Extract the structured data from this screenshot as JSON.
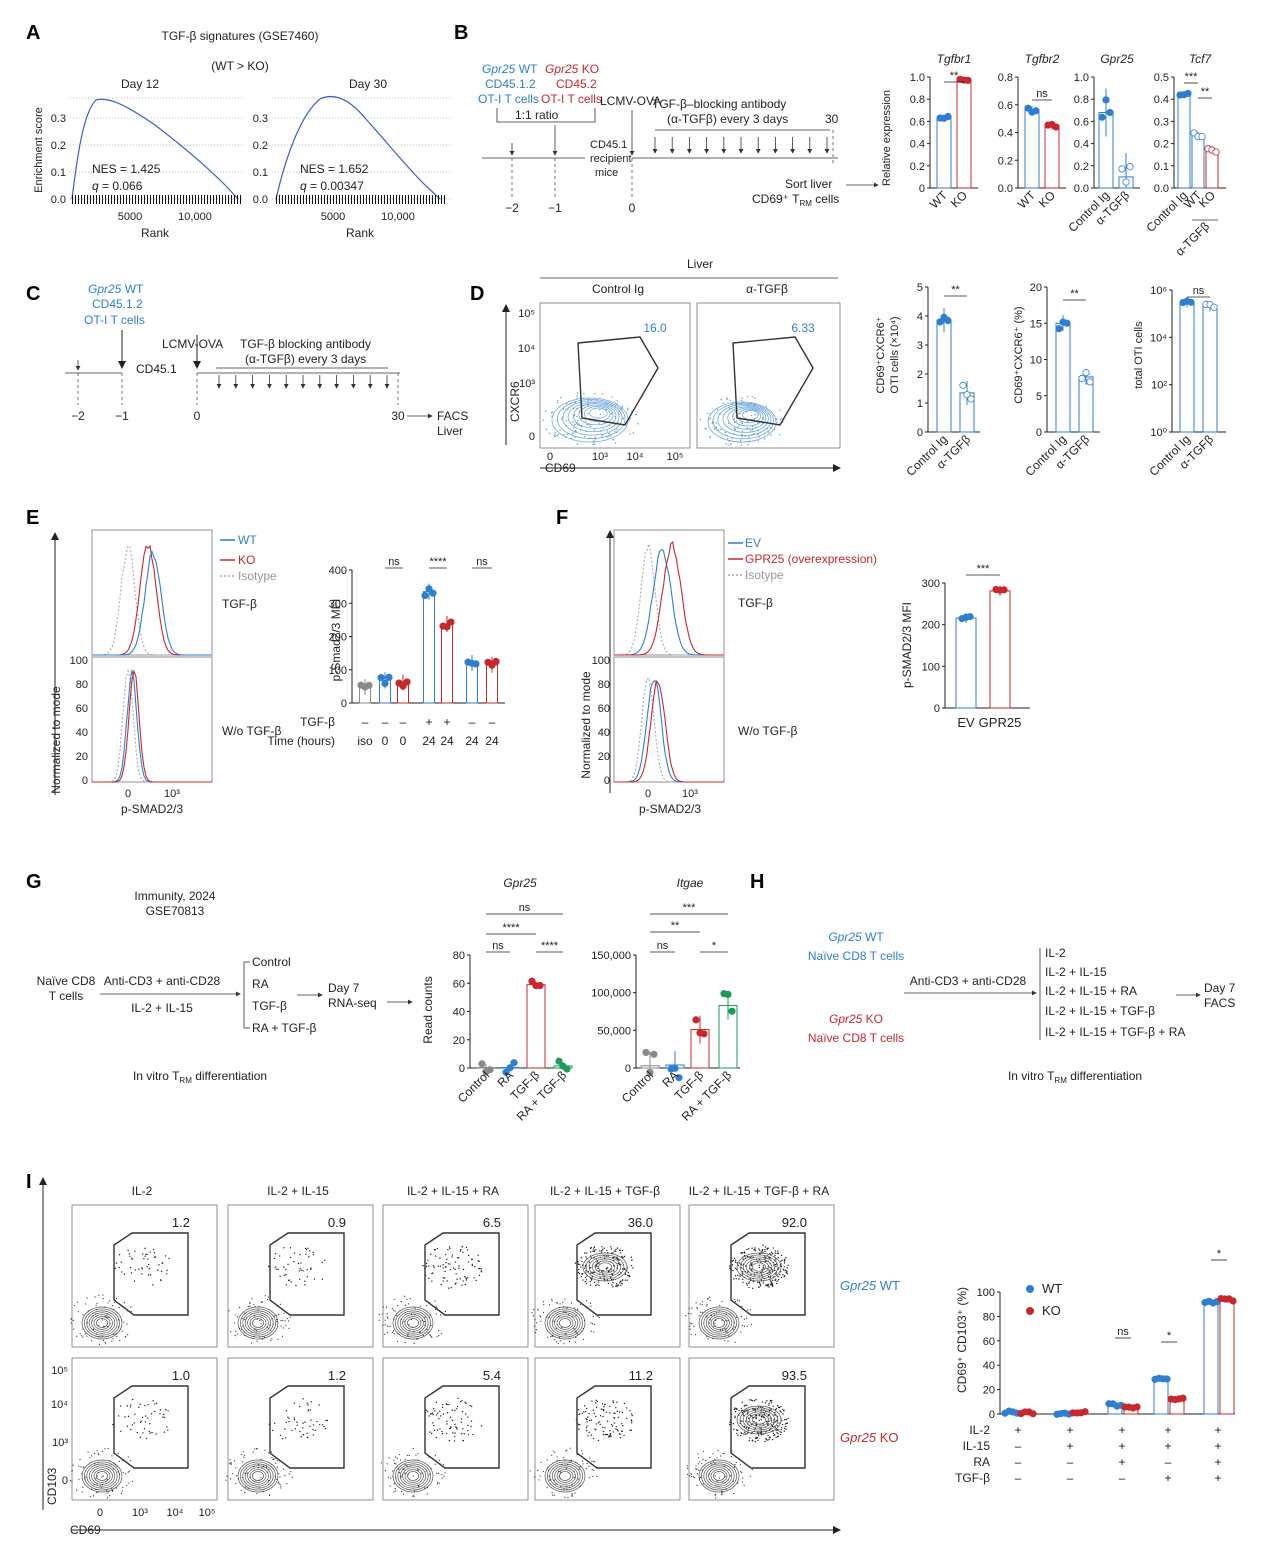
{
  "panel_labels": [
    "A",
    "B",
    "C",
    "D",
    "E",
    "F",
    "G",
    "H",
    "I"
  ],
  "colors": {
    "wt": "#2f7fd0",
    "ko": "#c7282d",
    "isotype": "#aaaaaa",
    "green": "#1e9a5a",
    "grey": "#8a8a8a"
  },
  "A": {
    "title": "TGF-β signatures (GSE7460)",
    "subtitle": "(WT > KO)",
    "ylabel": "Enrichment score",
    "xlabel": "Rank",
    "yticks": [
      "0.3",
      "0.2",
      "0.1",
      "0.0"
    ],
    "xticks": [
      "5000",
      "10,000"
    ],
    "day12": {
      "title": "Day 12",
      "nes": "NES = 1.425",
      "q_label": "q",
      "q": " = 0.066"
    },
    "day30": {
      "title": "Day 30",
      "nes": "NES = 1.652",
      "q_label": "q",
      "q": " = 0.00347"
    }
  },
  "B": {
    "wt_gene": "Gpr25",
    "wt_label": " WT",
    "wt_l2": "CD45.1.2",
    "wt_l3": "OT-I T cells",
    "ko_gene": "Gpr25",
    "ko_label": " KO",
    "ko_l2": "CD45.2",
    "ko_l3": "OT-I T cells",
    "ratio": "1:1 ratio",
    "recipient": [
      "CD45.1",
      "recipient",
      "mice"
    ],
    "infection": "LCMV-OVA",
    "treatment": [
      "TGF-β–blocking antibody",
      "(α-TGFβ) every 3 days"
    ],
    "day_end": "30",
    "days": [
      "−2",
      "−1",
      "0"
    ],
    "sort": [
      "Sort liver",
      "CD69⁺ T",
      "RM",
      " cells"
    ],
    "ylabel": "Relative expression",
    "charts": [
      {
        "gene": "Tgfbr1",
        "yticks": [
          "1.0",
          "0.8",
          "0.6",
          "0.4",
          "0.2",
          "0"
        ],
        "sig": "**",
        "groups": [
          "WT",
          "KO"
        ]
      },
      {
        "gene": "Tgfbr2",
        "yticks": [
          "0.8",
          "0.6",
          "0.4",
          "0.2",
          "0.0"
        ],
        "sig": "ns",
        "groups": [
          "WT",
          "KO"
        ]
      },
      {
        "gene": "Gpr25",
        "yticks": [
          "1.0",
          "0.8",
          "0.6",
          "0.4",
          "0.2",
          "0.0"
        ],
        "sig": "",
        "groups": [
          "Control Ig",
          "α-TGFβ"
        ]
      },
      {
        "gene": "Tcf7",
        "yticks": [
          "0.5",
          "0.4",
          "0.3",
          "0.2",
          "0.1",
          "0.0"
        ],
        "sig1": "***",
        "sig2": "**",
        "groups": [
          "Control Ig",
          "WT",
          "KO"
        ],
        "group_sub": "α-TGFβ"
      }
    ]
  },
  "C": {
    "gene": "Gpr25",
    "wt": " WT",
    "l2": "CD45.1.2",
    "l3": "OT-I T cells",
    "infection": "LCMV-OVA",
    "treatment": [
      "TGF-β blocking antibody",
      "(α-TGFβ) every 3 days"
    ],
    "host": "CD45.1",
    "days": [
      "−2",
      "−1",
      "0",
      "30"
    ],
    "readout": [
      "FACS",
      "Liver"
    ]
  },
  "D": {
    "tissue": "Liver",
    "conditions": [
      "Control Ig",
      "α-TGFβ"
    ],
    "gates": [
      "16.0",
      "6.33"
    ],
    "yaxis": "CXCR6",
    "xaxis": "CD69",
    "yticks": [
      "10⁵",
      "10⁴",
      "10³",
      "0"
    ],
    "xticks": [
      "0",
      "10³",
      "10⁴",
      "10⁵"
    ],
    "bar1": {
      "ylabel": [
        "CD69⁺CXCR6⁺",
        "OTI cells (×10⁴)"
      ],
      "yticks": [
        "5",
        "4",
        "3",
        "2",
        "1",
        "0"
      ],
      "sig": "**",
      "groups": [
        "Control Ig",
        "α-TGFβ"
      ]
    },
    "bar2": {
      "ylabel": "CD69⁺CXCR6⁺ (%)",
      "yticks": [
        "20",
        "15",
        "10",
        "5",
        "0"
      ],
      "sig": "**",
      "groups": [
        "Control Ig",
        "α-TGFβ"
      ]
    },
    "bar3": {
      "ylabel": "total OTI cells",
      "yticks": [
        "10⁶",
        "10⁴",
        "10²",
        "10⁰"
      ],
      "sig": "ns",
      "groups": [
        "Control Ig",
        "α-TGFβ"
      ]
    }
  },
  "E": {
    "legend": [
      "WT",
      "KO",
      "Isotype"
    ],
    "conds": [
      "TGF-β",
      "W/o TGF-β"
    ],
    "ylabel": "Normalized to mode",
    "xlabel": "p-SMAD2/3",
    "yticks": [
      "100",
      "80",
      "60",
      "40",
      "20",
      "0"
    ],
    "xticks": [
      "0",
      "10³"
    ],
    "bar_ylabel": "p-Smad2/3 MFI",
    "bar_yticks": [
      "400",
      "300",
      "200",
      "100",
      "0"
    ],
    "sigs": [
      "ns",
      "****",
      "ns"
    ],
    "tgf_label": "TGF-β",
    "tgf_row": [
      "–",
      "–",
      "–",
      "+",
      "+",
      "–",
      "–"
    ],
    "time_label": "Time (hours)",
    "time_row": [
      "iso",
      "0",
      "0",
      "24",
      "24",
      "24",
      "24"
    ]
  },
  "F": {
    "legend": [
      "EV",
      "GPR25 (overexpression)",
      "Isotype"
    ],
    "conds": [
      "TGF-β",
      "W/o TGF-β"
    ],
    "ylabel": "Normalized to mode",
    "xlabel": "p-SMAD2/3",
    "yticks": [
      "100",
      "80",
      "60",
      "40",
      "20",
      "0"
    ],
    "xticks": [
      "0",
      "10³"
    ],
    "bar_ylabel": "p-SMAD2/3 MFI",
    "bar_yticks": [
      "300",
      "200",
      "100",
      "0"
    ],
    "sig": "***",
    "groups": [
      "EV",
      "GPR25"
    ]
  },
  "G": {
    "source": [
      "Immunity, 2024",
      "GSE70813"
    ],
    "start": [
      "Naïve CD8",
      "T cells"
    ],
    "stim": "Anti-CD3 + anti-CD28",
    "cytokines": "IL-2 + IL-15",
    "conds": [
      "Control",
      "RA",
      "TGF-β",
      "RA + TGF-β"
    ],
    "readout": [
      "Day 7",
      "RNA-seq"
    ],
    "caption": "In vitro T",
    "caption_sub": "RM",
    "caption_end": " differentiation",
    "ylabel": "Read counts",
    "chart1": {
      "gene": "Gpr25",
      "yticks": [
        "80",
        "60",
        "40",
        "20",
        "0"
      ],
      "sigs": [
        "ns",
        "****",
        "ns",
        "****"
      ]
    },
    "chart2": {
      "gene": "Itgae",
      "yticks": [
        "150,000",
        "100,000",
        "50,000",
        "0"
      ],
      "sigs": [
        "***",
        "**",
        "ns",
        "*"
      ]
    },
    "groups": [
      "Control",
      "RA",
      "TGF-β",
      "RA + TGF-β"
    ]
  },
  "H": {
    "wt": [
      "Gpr25",
      " WT",
      "Naïve CD8 T cells"
    ],
    "ko": [
      "Gpr25",
      " KO",
      "Naïve CD8 T cells"
    ],
    "stim": "Anti-CD3 + anti-CD28",
    "conds": [
      "IL-2",
      "IL-2 + IL-15",
      "IL-2 + IL-15 + RA",
      "IL-2 + IL-15 + TGF-β",
      "IL-2 + IL-15 + TGF-β + RA"
    ],
    "readout": [
      "Day 7",
      "FACS"
    ],
    "caption": "In vitro T",
    "caption_sub": "RM",
    "caption_end": " differentiation"
  },
  "I": {
    "conds": [
      "IL-2",
      "IL-2 + IL-15",
      "IL-2 + IL-15 + RA",
      "IL-2 + IL-15 + TGF-β",
      "IL-2 + IL-15 + TGF-β + RA"
    ],
    "wt_gates": [
      "1.2",
      "0.9",
      "6.5",
      "36.0",
      "92.0"
    ],
    "ko_gates": [
      "1.0",
      "1.2",
      "5.4",
      "11.2",
      "93.5"
    ],
    "row_wt": [
      "Gpr25",
      " WT"
    ],
    "row_ko": [
      "Gpr25",
      " KO"
    ],
    "yaxis": "CD103",
    "xaxis": "CD69",
    "yticks": [
      "10⁵",
      "10⁴",
      "10³",
      "0"
    ],
    "xticks": [
      "0",
      "10³",
      "10⁴",
      "10⁵"
    ],
    "bar_ylabel": "CD69⁺ CD103⁺ (%)",
    "bar_yticks": [
      "100",
      "80",
      "60",
      "40",
      "20",
      "0"
    ],
    "legend": [
      "WT",
      "KO"
    ],
    "sigs": [
      "ns",
      "*",
      "*"
    ],
    "rows": [
      {
        "label": "IL-2",
        "vals": [
          "+",
          "+",
          "+",
          "+",
          "+"
        ]
      },
      {
        "label": "IL-15",
        "vals": [
          "–",
          "+",
          "+",
          "+",
          "+"
        ]
      },
      {
        "label": "RA",
        "vals": [
          "–",
          "–",
          "+",
          "–",
          "+"
        ]
      },
      {
        "label": "TGF-β",
        "vals": [
          "–",
          "–",
          "–",
          "+",
          "+"
        ]
      }
    ]
  },
  "chart_data": [
    {
      "type": "bar",
      "panel": "B-Tgfbr1",
      "categories": [
        "WT",
        "KO"
      ],
      "values": [
        0.63,
        0.97
      ],
      "ylim": [
        0,
        1.0
      ],
      "title": "Tgfbr1",
      "ylabel": "Relative expression"
    },
    {
      "type": "bar",
      "panel": "B-Tgfbr2",
      "categories": [
        "WT",
        "KO"
      ],
      "values": [
        0.56,
        0.45
      ],
      "ylim": [
        0,
        0.8
      ],
      "title": "Tgfbr2"
    },
    {
      "type": "bar",
      "panel": "B-Gpr25",
      "categories": [
        "Control Ig",
        "α-TGFβ"
      ],
      "values": [
        0.68,
        0.1
      ],
      "ylim": [
        0,
        1.0
      ],
      "title": "Gpr25"
    },
    {
      "type": "bar",
      "panel": "B-Tcf7",
      "categories": [
        "Control Ig",
        "WT",
        "KO"
      ],
      "values": [
        0.42,
        0.24,
        0.17
      ],
      "ylim": [
        0,
        0.5
      ],
      "title": "Tcf7"
    },
    {
      "type": "bar",
      "panel": "D-count",
      "categories": [
        "Control Ig",
        "α-TGFβ"
      ],
      "values": [
        3.85,
        1.35
      ],
      "ylim": [
        0,
        5
      ],
      "ylabel": "CD69⁺CXCR6⁺ OTI cells (×10⁴)"
    },
    {
      "type": "bar",
      "panel": "D-percent",
      "categories": [
        "Control Ig",
        "α-TGFβ"
      ],
      "values": [
        15.0,
        7.6
      ],
      "ylim": [
        0,
        20
      ],
      "ylabel": "CD69⁺CXCR6⁺ (%)"
    },
    {
      "type": "bar",
      "panel": "D-total",
      "categories": [
        "Control Ig",
        "α-TGFβ"
      ],
      "values": [
        300000,
        200000
      ],
      "ylim": [
        1,
        1000000
      ],
      "log": true,
      "ylabel": "total OTI cells"
    },
    {
      "type": "bar",
      "panel": "E-MFI",
      "categories": [
        "iso",
        "0 WT",
        "0 KO",
        "24 WT +TGF-β",
        "24 KO +TGF-β",
        "24 WT",
        "24 KO"
      ],
      "values": [
        48,
        68,
        62,
        335,
        238,
        120,
        115
      ],
      "ylim": [
        0,
        400
      ],
      "ylabel": "p-Smad2/3 MFI"
    },
    {
      "type": "bar",
      "panel": "F-MFI",
      "categories": [
        "EV",
        "GPR25"
      ],
      "values": [
        216,
        281
      ],
      "ylim": [
        0,
        300
      ],
      "ylabel": "p-SMAD2/3 MFI"
    },
    {
      "type": "bar",
      "panel": "G-Gpr25",
      "categories": [
        "Control",
        "RA",
        "TGF-β",
        "RA + TGF-β"
      ],
      "values": [
        0.3,
        0.4,
        59,
        1.5
      ],
      "ylim": [
        0,
        80
      ],
      "ylabel": "Read counts"
    },
    {
      "type": "bar",
      "panel": "G-Itgae",
      "categories": [
        "Control",
        "RA",
        "TGF-β",
        "RA + TGF-β"
      ],
      "values": [
        3000,
        4000,
        51000,
        83000
      ],
      "ylim": [
        0,
        150000
      ],
      "ylabel": "Read counts"
    },
    {
      "type": "bar",
      "panel": "I-summary",
      "categories": [
        "IL-2",
        "IL-2+IL-15",
        "IL-2+IL-15+RA",
        "IL-2+IL-15+TGF-β",
        "IL-2+IL-15+TGF-β+RA"
      ],
      "series": [
        {
          "name": "WT",
          "values": [
            1.2,
            0.9,
            7.5,
            29,
            92
          ]
        },
        {
          "name": "KO",
          "values": [
            1.0,
            1.0,
            5.2,
            12,
            93.5
          ]
        }
      ],
      "ylim": [
        0,
        100
      ],
      "ylabel": "CD69⁺ CD103⁺ (%)"
    }
  ]
}
